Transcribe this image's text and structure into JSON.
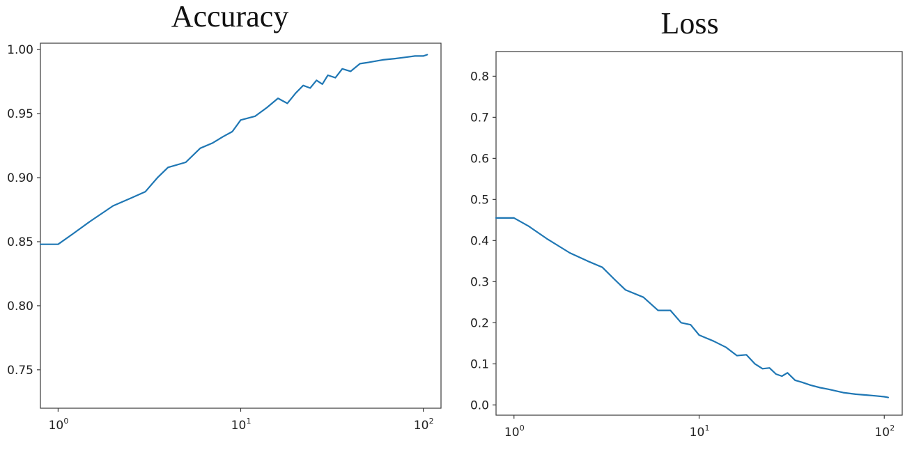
{
  "chart_data": [
    {
      "type": "line",
      "title": "Accuracy",
      "xscale": "log",
      "xlim": [
        0.8,
        125
      ],
      "ylim": [
        0.72,
        1.005
      ],
      "xticks": [
        {
          "value": 1,
          "base": "10",
          "exp": "0"
        },
        {
          "value": 10,
          "base": "10",
          "exp": "1"
        },
        {
          "value": 100,
          "base": "10",
          "exp": "2"
        }
      ],
      "yticks": [
        {
          "value": 1.0,
          "label": "1.00"
        },
        {
          "value": 0.95,
          "label": "0.95"
        },
        {
          "value": 0.9,
          "label": "0.90"
        },
        {
          "value": 0.85,
          "label": "0.85"
        },
        {
          "value": 0.8,
          "label": "0.80"
        },
        {
          "value": 0.75,
          "label": "0.75"
        }
      ],
      "color": "#1f77b4",
      "series": [
        {
          "x": [
            0.8,
            1,
            1.2,
            1.5,
            2,
            2.5,
            3,
            3.5,
            4,
            5,
            6,
            7,
            8,
            9,
            10,
            12,
            14,
            16,
            18,
            20,
            22,
            24,
            26,
            28,
            30,
            33,
            36,
            40,
            45,
            50,
            60,
            70,
            80,
            90,
            100,
            105
          ],
          "y": [
            0.848,
            0.848,
            0.856,
            0.866,
            0.878,
            0.884,
            0.889,
            0.9,
            0.908,
            0.912,
            0.923,
            0.927,
            0.932,
            0.936,
            0.945,
            0.948,
            0.955,
            0.962,
            0.958,
            0.966,
            0.972,
            0.97,
            0.976,
            0.973,
            0.98,
            0.978,
            0.985,
            0.983,
            0.989,
            0.99,
            0.992,
            0.993,
            0.994,
            0.995,
            0.995,
            0.996
          ]
        }
      ]
    },
    {
      "type": "line",
      "title": "Loss",
      "xscale": "log",
      "xlim": [
        0.8,
        125
      ],
      "ylim": [
        -0.025,
        0.86
      ],
      "xticks": [
        {
          "value": 1,
          "base": "10",
          "exp": "0"
        },
        {
          "value": 10,
          "base": "10",
          "exp": "1"
        },
        {
          "value": 100,
          "base": "10",
          "exp": "2"
        }
      ],
      "yticks": [
        {
          "value": 0.8,
          "label": "0.8"
        },
        {
          "value": 0.7,
          "label": "0.7"
        },
        {
          "value": 0.6,
          "label": "0.6"
        },
        {
          "value": 0.5,
          "label": "0.5"
        },
        {
          "value": 0.4,
          "label": "0.4"
        },
        {
          "value": 0.3,
          "label": "0.3"
        },
        {
          "value": 0.2,
          "label": "0.2"
        },
        {
          "value": 0.1,
          "label": "0.1"
        },
        {
          "value": 0.0,
          "label": "0.0"
        }
      ],
      "color": "#1f77b4",
      "series": [
        {
          "x": [
            0.8,
            1,
            1.2,
            1.5,
            2,
            2.5,
            3,
            3.5,
            4,
            5,
            6,
            7,
            8,
            9,
            10,
            12,
            14,
            16,
            18,
            20,
            22,
            24,
            26,
            28,
            30,
            33,
            36,
            40,
            45,
            50,
            60,
            70,
            80,
            90,
            100,
            105
          ],
          "y": [
            0.455,
            0.455,
            0.435,
            0.405,
            0.37,
            0.35,
            0.335,
            0.305,
            0.28,
            0.262,
            0.23,
            0.23,
            0.2,
            0.195,
            0.17,
            0.155,
            0.14,
            0.12,
            0.122,
            0.1,
            0.088,
            0.09,
            0.075,
            0.07,
            0.078,
            0.06,
            0.055,
            0.048,
            0.042,
            0.038,
            0.03,
            0.026,
            0.024,
            0.022,
            0.02,
            0.018
          ]
        }
      ]
    }
  ]
}
